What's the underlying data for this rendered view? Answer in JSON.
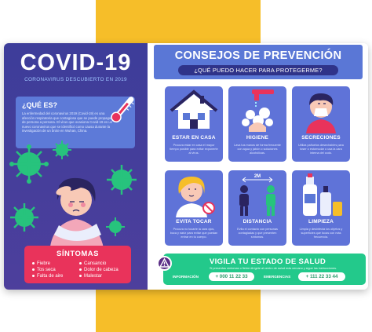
{
  "colors": {
    "yellow_bg": "#f6be29",
    "left_panel": "#3d3d9a",
    "tile_blue": "#5f73d8",
    "symptoms_red": "#e9335b",
    "status_green": "#23c98b",
    "virus_green": "#27c37d"
  },
  "left": {
    "title": "COVID-19",
    "subtitle": "CORONAVIRUS DESCUBIERTO EN 2019",
    "que_es": {
      "heading": "¿QUÉ ES?",
      "body": "La enfermedad del coronavirus 2019 (Covid-19) es una afección respiratoria que contagiosa que se puede propagar de persona a persona. El virus que ocasiona Covid-19 es un nuevo coronavirus que se identificó como causa durante la investigación de un brote en Wuhan, China."
    },
    "sintomas": {
      "title": "SÍNTOMAS",
      "items": [
        "Fiebre",
        "Tos seca",
        "Falta de aire",
        "Cansancio",
        "Dolor de cabeza",
        "Malestar"
      ]
    }
  },
  "right": {
    "title": "CONSEJOS DE PREVENCIÓN",
    "question": "¿QUÉ PUEDO HACER PARA PROTEGERME?",
    "tips": [
      {
        "label": "ESTAR EN CASA",
        "desc": "Procura estar en casa el mayor tiempo posible para evitar exponerte al virus.",
        "icon": "house-icon"
      },
      {
        "label": "HIGIENE",
        "desc": "Lava tus manos de forma frecuente con agua y jabón o soluciones alcohólicas.",
        "icon": "hand-washing-icon"
      },
      {
        "label": "SECRECIONES",
        "desc": "Utiliza pañuelos desechables para toser o estornudar o usa la cara interna del codo.",
        "icon": "sneezing-person-icon"
      },
      {
        "label": "EVITA TOCAR",
        "desc": "Procura no tocarte la cara ojos, boca y nariz para evitar que puedan entrar en tu cuerpo.",
        "icon": "no-touch-face-icon"
      },
      {
        "label": "DISTANCIA",
        "desc": "Evita el contacto con personas contagiadas y que presenten síntomas.",
        "icon": "social-distance-icon"
      },
      {
        "label": "LIMPIEZA",
        "desc": "Limpia y desinfecta los objetos y superficies que tocas con más frecuencia.",
        "icon": "cleaning-products-icon"
      }
    ],
    "distance_marker": "2M",
    "vigila": {
      "title": "VIGILA TU ESTADO DE SALUD",
      "desc": "Si presentas síntomas o fiebre dirígete al centro de salud más cercano y sigue las instrucciones.",
      "info_label": "INFORMACIÓN",
      "info_phone": "+ 000 11 22 33",
      "emergency_label": "EMERGENCIAS",
      "emergency_phone": "+ 111 22 33 44"
    }
  }
}
